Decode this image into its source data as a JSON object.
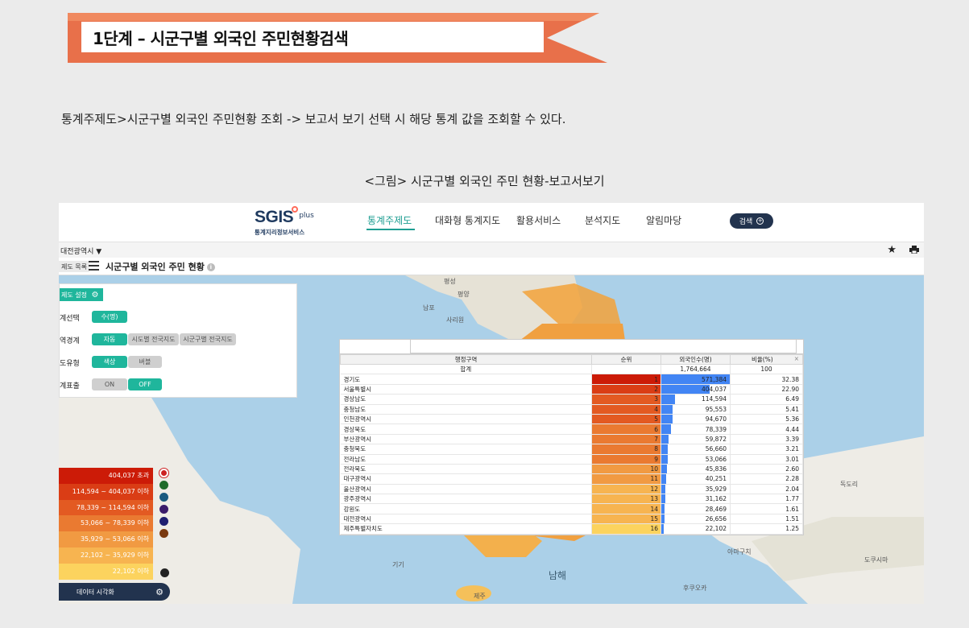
{
  "doc": {
    "step_title": "1단계 – 시군구별 외국인 주민현황검색",
    "description": "통계주제도>시군구별 외국인 주민현황 조회 -> 보고서 보기 선택 시 해당 통계 값을 조회할 수 있다.",
    "caption": "<그림> 시군구별 외국인 주민 현황-보고서보기"
  },
  "app": {
    "logo_main": "SGIS",
    "logo_plus": "plus",
    "logo_sub": "통계지리정보서비스",
    "nav": [
      "통계주제도",
      "대화형 통계지도",
      "활용서비스",
      "분석지도",
      "알림마당"
    ],
    "search_label": "검색",
    "region": "대전광역시",
    "panel_tag": "제도 목록",
    "page_title": "시군구별 외국인 주민 현황",
    "settings": {
      "head": "제도 설정",
      "rows": [
        {
          "label": "계선택",
          "chips": [
            {
              "text": "수(명)",
              "on": true
            }
          ]
        },
        {
          "label": "역경계",
          "chips": [
            {
              "text": "자동",
              "on": true
            },
            {
              "text": "시도별 전국지도",
              "on": false
            },
            {
              "text": "시군구별 전국지도",
              "on": false
            }
          ]
        },
        {
          "label": "도유형",
          "chips": [
            {
              "text": "색상",
              "on": true
            },
            {
              "text": "버블",
              "on": false
            }
          ]
        },
        {
          "label": "계표출",
          "chips": [
            {
              "text": "ON",
              "on": false
            },
            {
              "text": "OFF",
              "on": true
            }
          ]
        }
      ]
    },
    "map_labels": [
      "평성",
      "평양",
      "남포",
      "사리원",
      "독도리",
      "아마구치",
      "도쿠시마",
      "기기",
      "남해",
      "후쿠오카",
      "제주"
    ],
    "legend": [
      {
        "label": "404,037 초과",
        "color": "#cc1b07"
      },
      {
        "label": "114,594 ~ 404,037 이하",
        "color": "#da3d15"
      },
      {
        "label": "78,339 ~ 114,594 이하",
        "color": "#e35a22"
      },
      {
        "label": "53,066 ~ 78,339 이하",
        "color": "#ea7a31"
      },
      {
        "label": "35,929 ~ 53,066 이하",
        "color": "#f19a42"
      },
      {
        "label": "22,102 ~ 35,929 이하",
        "color": "#f7b450"
      },
      {
        "label": "22,102 이하",
        "color": "#fcd35e"
      }
    ],
    "legend_dots": [
      "#cc2222",
      "#1e6b2a",
      "#1a5a80",
      "#3a1b6b",
      "#1e1e70",
      "#7a3a10"
    ],
    "legend_footer": "데이터 시각화"
  },
  "report": {
    "headers": [
      "행정구역",
      "순위",
      "외국인수(명)",
      "비율(%)"
    ],
    "total": {
      "name": "합계",
      "value": "1,764,664",
      "ratio": "100"
    },
    "rows": [
      {
        "name": "경기도",
        "rank": "1",
        "value": "571,384",
        "ratio": "32.38",
        "color": "#cc1b07",
        "share": 1.0
      },
      {
        "name": "서울특별시",
        "rank": "2",
        "value": "404,037",
        "ratio": "22.90",
        "color": "#da3d15",
        "share": 0.707
      },
      {
        "name": "경상남도",
        "rank": "3",
        "value": "114,594",
        "ratio": "6.49",
        "color": "#e35a22",
        "share": 0.2
      },
      {
        "name": "충청남도",
        "rank": "4",
        "value": "95,553",
        "ratio": "5.41",
        "color": "#e35a22",
        "share": 0.167
      },
      {
        "name": "인천광역시",
        "rank": "5",
        "value": "94,670",
        "ratio": "5.36",
        "color": "#e35a22",
        "share": 0.166
      },
      {
        "name": "경상북도",
        "rank": "6",
        "value": "78,339",
        "ratio": "4.44",
        "color": "#ea7a31",
        "share": 0.137
      },
      {
        "name": "부산광역시",
        "rank": "7",
        "value": "59,872",
        "ratio": "3.39",
        "color": "#ea7a31",
        "share": 0.105
      },
      {
        "name": "충청북도",
        "rank": "8",
        "value": "56,660",
        "ratio": "3.21",
        "color": "#ea7a31",
        "share": 0.099
      },
      {
        "name": "전라남도",
        "rank": "9",
        "value": "53,066",
        "ratio": "3.01",
        "color": "#ea7a31",
        "share": 0.093
      },
      {
        "name": "전라북도",
        "rank": "10",
        "value": "45,836",
        "ratio": "2.60",
        "color": "#f19a42",
        "share": 0.08
      },
      {
        "name": "대구광역시",
        "rank": "11",
        "value": "40,251",
        "ratio": "2.28",
        "color": "#f19a42",
        "share": 0.07
      },
      {
        "name": "울산광역시",
        "rank": "12",
        "value": "35,929",
        "ratio": "2.04",
        "color": "#f7b450",
        "share": 0.063
      },
      {
        "name": "광주광역시",
        "rank": "13",
        "value": "31,162",
        "ratio": "1.77",
        "color": "#f7b450",
        "share": 0.055
      },
      {
        "name": "강원도",
        "rank": "14",
        "value": "28,469",
        "ratio": "1.61",
        "color": "#f7b450",
        "share": 0.05
      },
      {
        "name": "대전광역시",
        "rank": "15",
        "value": "26,656",
        "ratio": "1.51",
        "color": "#f7b450",
        "share": 0.047
      },
      {
        "name": "제주특별자치도",
        "rank": "16",
        "value": "22,102",
        "ratio": "1.25",
        "color": "#fcd35e",
        "share": 0.039
      }
    ]
  }
}
